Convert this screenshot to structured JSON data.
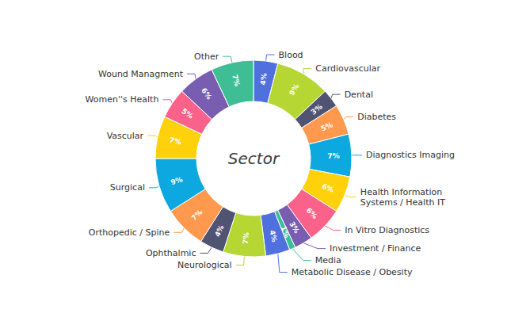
{
  "chart_data": {
    "type": "pie",
    "title": "Sector",
    "categories": [
      "Blood",
      "Cardiovascular",
      "Dental",
      "Diabetes",
      "Diagnostics Imaging",
      "Health Information\nSystems / Health IT",
      "In Vitro Diagnostics",
      "Investment / Finance",
      "Media",
      "Metabolic Disease / Obesity",
      "Neurological",
      "Ophthalmic",
      "Orthopedic / Spine",
      "Surgical",
      "Vascular",
      "Women''s Health",
      "Wound Managment",
      "Other"
    ],
    "values": [
      4,
      9,
      3,
      5,
      7,
      6,
      6,
      3,
      1,
      4,
      7,
      4,
      7,
      9,
      7,
      5,
      6,
      7
    ],
    "value_labels": [
      "4%",
      "9%",
      "3%",
      "5%",
      "7%",
      "6%",
      "6%",
      "3%",
      "1%",
      "4%",
      "7%",
      "4%",
      "7%",
      "9%",
      "7%",
      "5%",
      "6%",
      "7%"
    ],
    "data_labels": true
  }
}
